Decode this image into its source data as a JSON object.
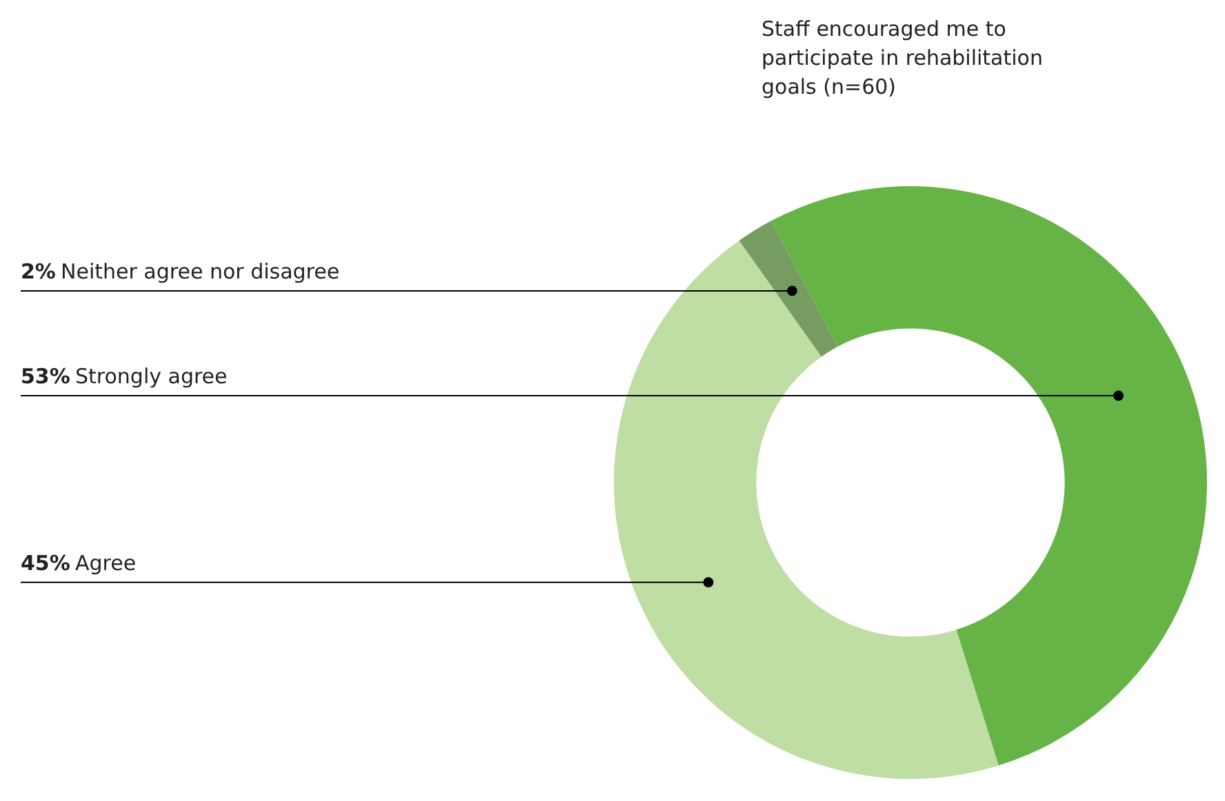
{
  "chart_data": {
    "type": "donut",
    "title": "Staff encouraged me to participate in rehabilitation goals (n=60)",
    "categories": [
      "Strongly agree",
      "Agree",
      "Neither agree nor disagree"
    ],
    "values": [
      53,
      45,
      2
    ],
    "value_labels": [
      "53%",
      "45%",
      "2%"
    ],
    "colors": [
      "#66b446",
      "#bfdea3",
      "#769c62"
    ]
  }
}
